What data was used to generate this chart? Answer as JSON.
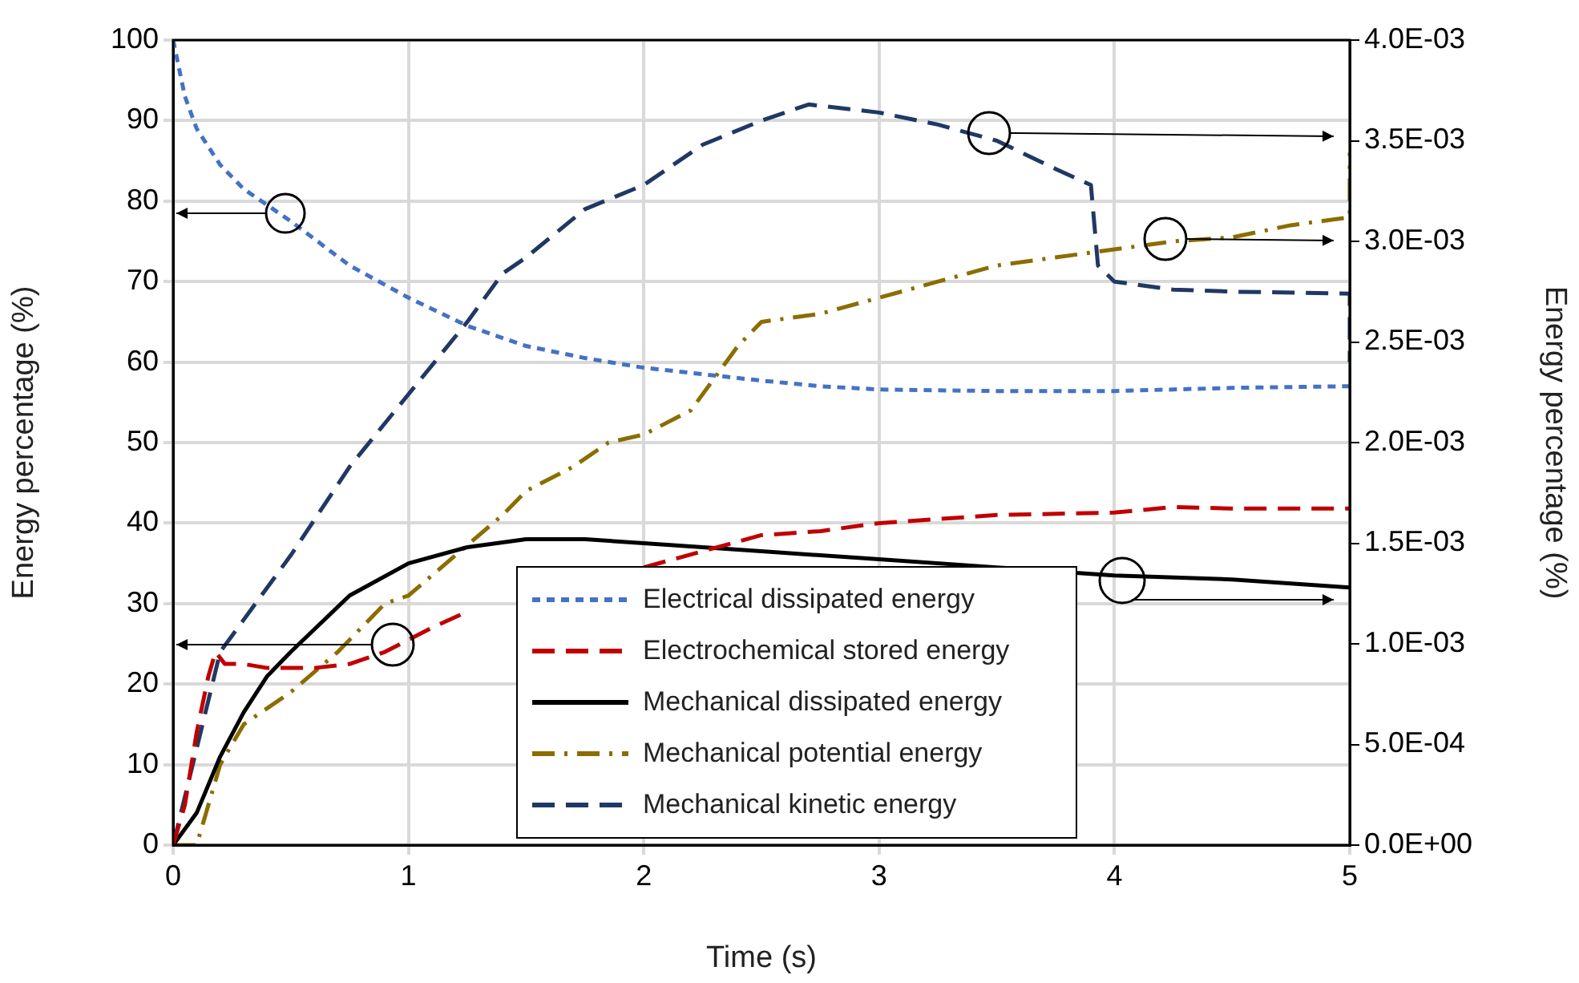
{
  "chart_data": {
    "type": "line",
    "xlabel": "Time (s)",
    "ylabel": "Energy percentage (%)",
    "y2label": "Energy percentage (%)",
    "xlim": [
      0,
      5
    ],
    "xticks": [
      0,
      1,
      2,
      3,
      4,
      5
    ],
    "ylim": [
      0,
      100
    ],
    "yticks": [
      0,
      10,
      20,
      30,
      40,
      50,
      60,
      70,
      80,
      90,
      100
    ],
    "y2lim": [
      0,
      0.004
    ],
    "y2ticks": [
      {
        "value": 0,
        "label": "0.0E+00"
      },
      {
        "value": 0.0005,
        "label": "5.0E-04"
      },
      {
        "value": 0.001,
        "label": "1.0E-03"
      },
      {
        "value": 0.0015,
        "label": "1.5E-03"
      },
      {
        "value": 0.002,
        "label": "2.0E-03"
      },
      {
        "value": 0.0025,
        "label": "2.5E-03"
      },
      {
        "value": 0.003,
        "label": "3.0E-03"
      },
      {
        "value": 0.0035,
        "label": "3.5E-03"
      },
      {
        "value": 0.004,
        "label": "4.0E-03"
      }
    ],
    "grid": true,
    "legend": "bottom",
    "series": [
      {
        "name": "Electrical dissipated energy",
        "color": "#4472c4",
        "line_style": "dotted",
        "x": [
          0,
          0.05,
          0.1,
          0.2,
          0.3,
          0.5,
          0.75,
          1,
          1.25,
          1.5,
          1.75,
          2,
          2.25,
          2.5,
          2.75,
          3,
          3.5,
          4,
          4.5,
          5
        ],
        "values": [
          100,
          93,
          89,
          84.5,
          81.5,
          77.5,
          72,
          68,
          64.5,
          62,
          60.5,
          59.3,
          58.5,
          57.7,
          57,
          56.6,
          56.4,
          56.4,
          56.8,
          57
        ]
      },
      {
        "name": "Electrochemical stored energy",
        "color": "#c00000",
        "line_style": "dashed",
        "x": [
          0,
          0.05,
          0.1,
          0.15,
          0.18,
          0.22,
          0.3,
          0.4,
          0.6,
          0.75,
          0.9,
          1,
          1.1,
          1.25,
          1.5,
          1.75,
          2,
          2.25,
          2.5,
          2.75,
          3,
          3.5,
          4,
          4.25,
          4.5,
          5
        ],
        "values": [
          0,
          5,
          14,
          21,
          24,
          22.5,
          22.5,
          22,
          22,
          22.5,
          24,
          25.5,
          27,
          29,
          null,
          null,
          34.5,
          36.5,
          38.5,
          39,
          40,
          41,
          41.3,
          42,
          41.8,
          41.8
        ]
      },
      {
        "name": "Mechanical dissipated energy",
        "color": "#000000",
        "line_style": "solid",
        "axis": "y2",
        "x": [
          0,
          0.1,
          0.2,
          0.3,
          0.4,
          0.5,
          0.75,
          1,
          1.25,
          1.5,
          1.75,
          2,
          2.5,
          3,
          3.5,
          4,
          4.5,
          5
        ],
        "values": [
          0,
          0.00016,
          0.00044,
          0.00066,
          0.00084,
          0.00096,
          0.00124,
          0.0014,
          0.00148,
          0.00152,
          0.00152,
          0.0015,
          0.00146,
          0.00142,
          0.00138,
          0.00134,
          0.00132,
          0.00128
        ]
      },
      {
        "name": "Mechanical potential energy",
        "color": "#8b6d00",
        "line_style": "dashdot",
        "axis": "y2",
        "x": [
          0,
          0.1,
          0.2,
          0.3,
          0.5,
          0.7,
          0.9,
          1,
          1.2,
          1.4,
          1.5,
          1.7,
          1.85,
          2,
          2.2,
          2.4,
          2.5,
          2.75,
          3,
          3.25,
          3.5,
          3.75,
          4,
          4.25,
          4.5,
          4.75,
          5,
          5
        ],
        "values": [
          0,
          0,
          0.0004,
          0.0006,
          0.00076,
          0.00096,
          0.0012,
          0.00124,
          0.00144,
          0.00164,
          0.00176,
          0.00188,
          0.002,
          0.00204,
          0.00216,
          0.00248,
          0.0026,
          0.00264,
          0.00272,
          0.0028,
          0.00288,
          0.00292,
          0.00296,
          0.003,
          0.00302,
          0.00308,
          0.00312,
          0.00344
        ]
      },
      {
        "name": "Mechanical kinetic energy",
        "color": "#203864",
        "line_style": "dashed",
        "axis": "y2",
        "x": [
          0,
          0.1,
          0.2,
          0.3,
          0.5,
          0.75,
          1,
          1.25,
          1.4,
          1.5,
          1.75,
          2,
          2.25,
          2.5,
          2.7,
          3,
          3.25,
          3.5,
          3.75,
          3.9,
          3.93,
          4,
          4.25,
          4.5,
          5,
          5
        ],
        "values": [
          0,
          0.00048,
          0.00096,
          0.00112,
          0.00144,
          0.00188,
          0.00224,
          0.0026,
          0.00284,
          0.00292,
          0.00316,
          0.00328,
          0.00348,
          0.0036,
          0.00368,
          0.00364,
          0.00358,
          0.0035,
          0.00336,
          0.00328,
          0.00288,
          0.0028,
          0.00276,
          0.00275,
          0.00274,
          0.0024
        ]
      }
    ]
  }
}
